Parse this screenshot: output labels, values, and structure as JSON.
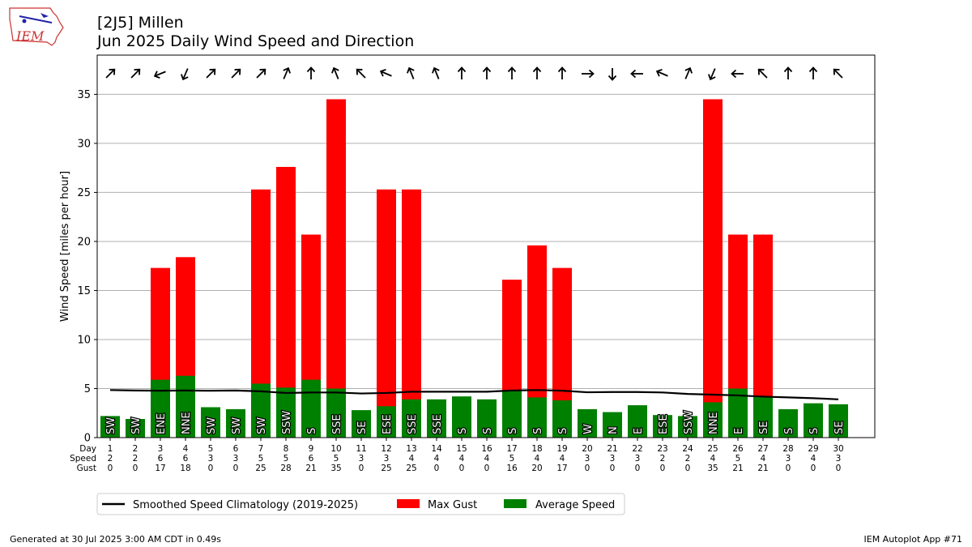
{
  "header": {
    "title_line1": "[2J5] Millen",
    "title_line2": "Jun 2025 Daily Wind Speed and Direction",
    "logo_text": "IEM"
  },
  "footer": {
    "generated": "Generated at 30 Jul 2025 3:00 AM CDT in 0.49s",
    "app": "IEM Autoplot App #71"
  },
  "chart_data": {
    "type": "bar",
    "ylabel": "Wind Speed [miles per hour]",
    "ylim": [
      0,
      39
    ],
    "yticks": [
      0,
      5,
      10,
      15,
      20,
      25,
      30,
      35
    ],
    "grid": true,
    "row_labels": [
      "Day",
      "Speed",
      "Gust"
    ],
    "days": [
      1,
      2,
      3,
      4,
      5,
      6,
      7,
      8,
      9,
      10,
      11,
      12,
      13,
      14,
      15,
      16,
      17,
      18,
      19,
      20,
      21,
      22,
      23,
      24,
      25,
      26,
      27,
      28,
      29,
      30
    ],
    "speed_labels": [
      2,
      2,
      6,
      6,
      3,
      3,
      5,
      5,
      6,
      5,
      3,
      3,
      4,
      4,
      4,
      4,
      5,
      4,
      4,
      3,
      3,
      3,
      2,
      2,
      4,
      5,
      4,
      3,
      4,
      3
    ],
    "gust_labels": [
      0,
      0,
      17,
      18,
      0,
      0,
      25,
      28,
      21,
      35,
      0,
      25,
      25,
      0,
      0,
      0,
      16,
      20,
      17,
      0,
      0,
      0,
      0,
      0,
      35,
      21,
      21,
      0,
      0,
      0
    ],
    "avg_speed": [
      2.2,
      1.9,
      5.9,
      6.3,
      3.1,
      2.9,
      5.5,
      5.1,
      5.9,
      5.0,
      2.8,
      3.2,
      3.9,
      3.9,
      4.2,
      3.9,
      4.8,
      4.1,
      3.8,
      2.9,
      2.6,
      3.3,
      2.3,
      2.2,
      3.6,
      5.0,
      4.2,
      2.9,
      3.5,
      3.4
    ],
    "max_gust": [
      0,
      0,
      17.3,
      18.4,
      0,
      0,
      25.3,
      27.6,
      20.7,
      34.5,
      0,
      25.3,
      25.3,
      0,
      0,
      0,
      16.1,
      19.6,
      17.3,
      0,
      0,
      0,
      0,
      0,
      34.5,
      20.7,
      20.7,
      0,
      0,
      0
    ],
    "direction_labels": [
      "SW",
      "SW",
      "ENE",
      "NNE",
      "SW",
      "SW",
      "SW",
      "SSW",
      "S",
      "SSE",
      "SE",
      "ESE",
      "SSE",
      "SSE",
      "S",
      "S",
      "S",
      "S",
      "S",
      "W",
      "N",
      "E",
      "ESE",
      "SSW",
      "NNE",
      "E",
      "SE",
      "S",
      "S",
      "SE"
    ],
    "direction_degrees": [
      225,
      225,
      68,
      23,
      225,
      225,
      225,
      203,
      180,
      158,
      135,
      113,
      158,
      158,
      180,
      180,
      180,
      180,
      180,
      270,
      0,
      90,
      113,
      203,
      23,
      90,
      135,
      180,
      180,
      135
    ],
    "climatology": [
      4.85,
      4.8,
      4.78,
      4.8,
      4.78,
      4.8,
      4.72,
      4.55,
      4.6,
      4.6,
      4.5,
      4.55,
      4.68,
      4.68,
      4.68,
      4.68,
      4.8,
      4.85,
      4.78,
      4.62,
      4.65,
      4.65,
      4.6,
      4.45,
      4.38,
      4.3,
      4.18,
      4.1,
      4.02,
      3.9
    ],
    "series": [
      {
        "name": "Smoothed Speed Climatology (2019-2025)",
        "color": "#000000"
      },
      {
        "name": "Max Gust",
        "color": "#ff0000"
      },
      {
        "name": "Average Speed",
        "color": "#008000"
      }
    ]
  }
}
